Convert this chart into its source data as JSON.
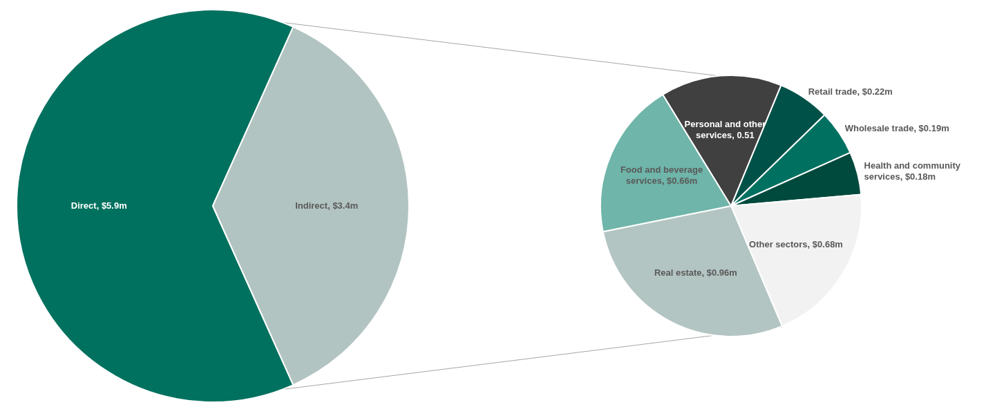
{
  "chart_data": [
    {
      "type": "pie",
      "categories": [
        "Direct",
        "Indirect"
      ],
      "values": [
        5.9,
        3.4
      ],
      "colors": [
        "#00715f",
        "#b2c4c1"
      ],
      "value_labels": [
        "$5.9m",
        "$3.4m"
      ]
    },
    {
      "type": "pie",
      "categories": [
        "Retail trade",
        "Wholesale trade",
        "Health and community services",
        "Other sectors",
        "Real estate",
        "Food and beverage services",
        "Personal and other services"
      ],
      "values": [
        0.22,
        0.19,
        0.18,
        0.68,
        0.96,
        0.66,
        0.51
      ],
      "colors": [
        "#005249",
        "#007161",
        "#004a3d",
        "#f2f2f2",
        "#b3c5c2",
        "#6fb5a9",
        "#404040"
      ],
      "value_labels": [
        "$0.22m",
        "$0.19m",
        "$0.18m",
        "$0.68m",
        "$0.96m",
        "$0.66m",
        "0.51"
      ]
    }
  ]
}
